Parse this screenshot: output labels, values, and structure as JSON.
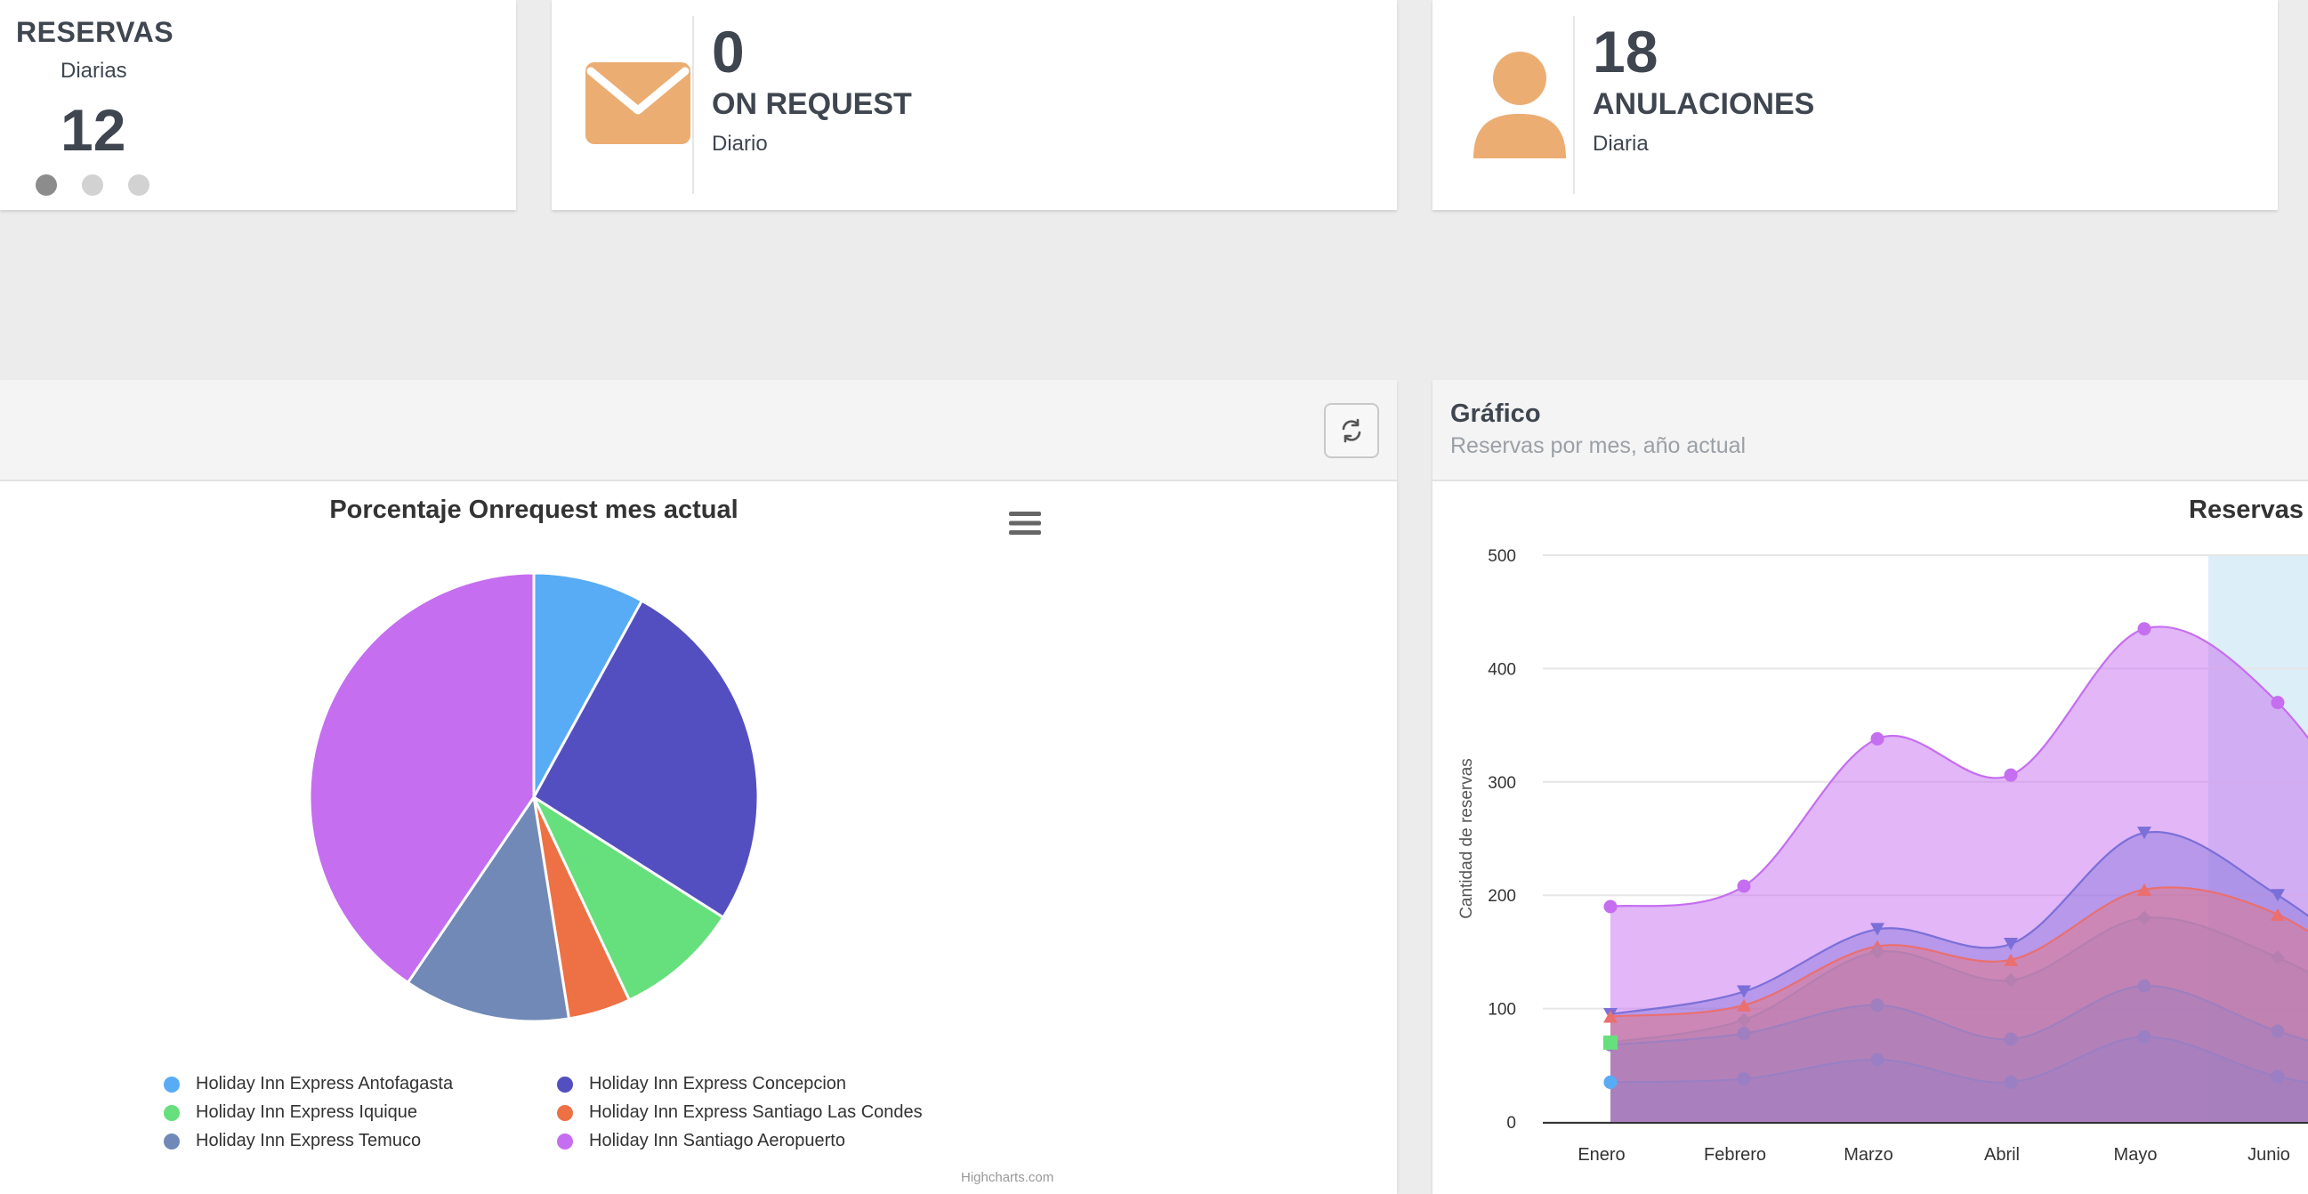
{
  "reservas_card": {
    "title": "RESERVAS",
    "subtitle": "Diarias",
    "value": "12",
    "slides": 3,
    "active_slide": 0
  },
  "onrequest_card": {
    "value": "0",
    "label": "ON REQUEST",
    "subtitle": "Diario",
    "icon": "envelope-icon",
    "icon_color": "#ecad72"
  },
  "anulaciones_card": {
    "value": "18",
    "label": "ANULACIONES",
    "subtitle": "Diaria",
    "icon": "user-icon",
    "icon_color": "#ecad72"
  },
  "pie_panel": {
    "refresh_icon": "refresh-icon",
    "menu_icon": "menu-icon",
    "credits": "Highcharts.com"
  },
  "area_panel": {
    "header_title": "Gráfico",
    "header_subtitle": "Reservas por mes, año actual"
  },
  "chart_data": [
    {
      "type": "pie",
      "title": "Porcentaje Onrequest mes actual",
      "legend_placement": "bottom",
      "slices": [
        {
          "name": "Holiday Inn Express Antofagasta",
          "value": 8,
          "color": "#58acf5"
        },
        {
          "name": "Holiday Inn Express Concepcion",
          "value": 26,
          "color": "#544fc0"
        },
        {
          "name": "Holiday Inn Express Iquique",
          "value": 9,
          "color": "#66df7d"
        },
        {
          "name": "Holiday Inn Express Santiago Las Condes",
          "value": 4.5,
          "color": "#ed7145"
        },
        {
          "name": "Holiday Inn Express Temuco",
          "value": 12,
          "color": "#7189b7"
        },
        {
          "name": "Holiday Inn Santiago Aeropuerto",
          "value": 40.5,
          "color": "#c56ef0"
        }
      ]
    },
    {
      "type": "area",
      "title": "Reservas",
      "ylabel": "Cantidad de reservas",
      "ylim": [
        0,
        500
      ],
      "yticks": [
        0,
        100,
        200,
        300,
        400,
        500
      ],
      "grid": true,
      "categories": [
        "Enero",
        "Febrero",
        "Marzo",
        "Abril",
        "Mayo",
        "Junio"
      ],
      "series": [
        {
          "values": [
            190,
            208,
            338,
            306,
            435,
            370
          ],
          "color": "#c56ef0",
          "marker": "circle"
        },
        {
          "values": [
            95,
            115,
            170,
            157,
            255,
            200
          ],
          "color": "#7b6fd8",
          "marker": "triangle-down"
        },
        {
          "values": [
            93,
            103,
            155,
            143,
            205,
            183
          ],
          "color": "#ea6f6f",
          "marker": "triangle"
        },
        {
          "values": [
            70,
            90,
            150,
            125,
            180,
            145
          ],
          "color": "#b57fb0",
          "marker": "diamond"
        },
        {
          "values": [
            68,
            78,
            103,
            73,
            120,
            80
          ],
          "color": "#9f7fbf",
          "marker": "circle"
        },
        {
          "values": [
            35,
            38,
            55,
            35,
            75,
            40
          ],
          "color": "#9a7fc4",
          "marker": "circle"
        }
      ],
      "extra_markers": {
        "green_square_value": 70,
        "blue_dot_value": 35
      },
      "highlight_band_color": "#dceef8"
    }
  ]
}
